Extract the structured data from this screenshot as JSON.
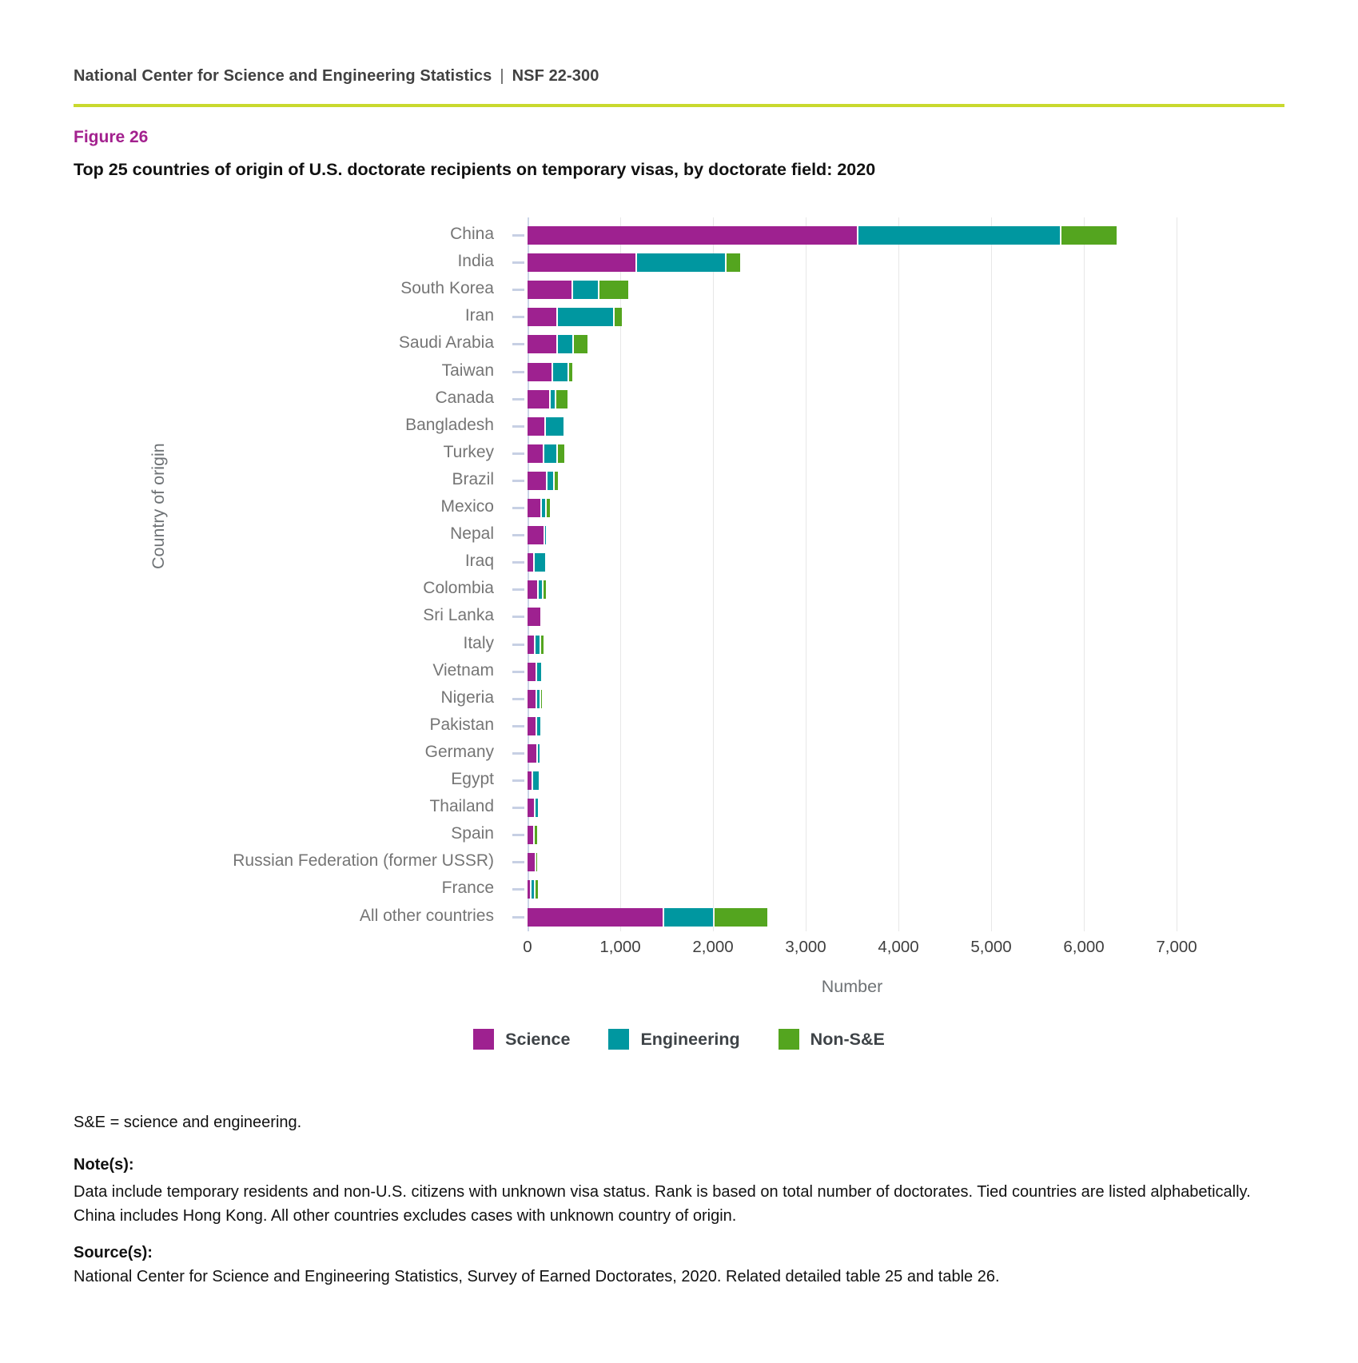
{
  "header": {
    "publisher": "National Center for Science and Engineering Statistics",
    "report_number": "NSF 22-300",
    "separator": "|"
  },
  "figure": {
    "label": "Figure 26",
    "title": "Top 25 countries of origin of U.S. doctorate recipients on temporary visas, by doctorate field: 2020"
  },
  "colors": {
    "science": "#9e2190",
    "engineering": "#0097a0",
    "non_se": "#54a51f",
    "divider_line": "#c9d92e",
    "figure_label_text": "#a3218e"
  },
  "chart_data": {
    "type": "bar",
    "orientation": "horizontal",
    "stacked": true,
    "grid": true,
    "title": "Top 25 countries of origin of U.S. doctorate recipients on temporary visas, by doctorate field: 2020",
    "xlabel": "Number",
    "ylabel": "Country of origin",
    "xlim": [
      0,
      7000
    ],
    "xticks": [
      0,
      1000,
      2000,
      3000,
      4000,
      5000,
      6000,
      7000
    ],
    "xtick_labels": [
      "0",
      "1,000",
      "2,000",
      "3,000",
      "4,000",
      "5,000",
      "6,000",
      "7,000"
    ],
    "legend_position": "bottom",
    "categories": [
      "China",
      "India",
      "South Korea",
      "Iran",
      "Saudi Arabia",
      "Taiwan",
      "Canada",
      "Bangladesh",
      "Turkey",
      "Brazil",
      "Mexico",
      "Nepal",
      "Iraq",
      "Colombia",
      "Sri Lanka",
      "Italy",
      "Vietnam",
      "Nigeria",
      "Pakistan",
      "Germany",
      "Egypt",
      "Thailand",
      "Spain",
      "Russian Federation (former USSR)",
      "France",
      "All other countries"
    ],
    "series": [
      {
        "name": "Science",
        "color": "#9e2190",
        "values": [
          3550,
          1165,
          475,
          310,
          310,
          260,
          230,
          180,
          160,
          200,
          140,
          170,
          60,
          105,
          140,
          65,
          85,
          90,
          85,
          95,
          45,
          70,
          60,
          75,
          30,
          1460
        ]
      },
      {
        "name": "Engineering",
        "color": "#0097a0",
        "values": [
          2170,
          950,
          265,
          595,
          155,
          155,
          45,
          195,
          135,
          55,
          35,
          15,
          115,
          35,
          0,
          45,
          45,
          20,
          35,
          10,
          55,
          25,
          0,
          0,
          20,
          525
        ]
      },
      {
        "name": "Non-S&E",
        "color": "#54a51f",
        "values": [
          600,
          140,
          315,
          75,
          145,
          35,
          120,
          0,
          70,
          35,
          30,
          0,
          0,
          25,
          0,
          25,
          0,
          15,
          0,
          0,
          0,
          0,
          30,
          10,
          30,
          570
        ]
      }
    ]
  },
  "footnotes": {
    "abbreviation": "S&E = science and engineering.",
    "notes_heading": "Note(s):",
    "notes_body": "Data include temporary residents and non-U.S. citizens with unknown visa status. Rank is based on total number of doctorates. Tied countries are listed alphabetically. China includes Hong Kong. All other countries excludes cases with unknown country of origin.",
    "source_heading": "Source(s):",
    "source_body": "National Center for Science and Engineering Statistics, Survey of Earned Doctorates, 2020. Related detailed table 25 and table 26."
  }
}
